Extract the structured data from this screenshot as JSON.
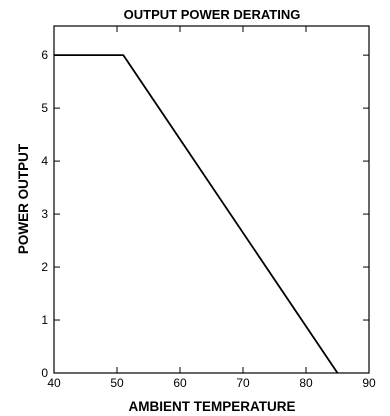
{
  "chart_data": {
    "type": "line",
    "title": "OUTPUT POWER DERATING",
    "xlabel": "AMBIENT TEMPERATURE",
    "ylabel": "POWER OUTPUT",
    "xlim": [
      40,
      90
    ],
    "ylim": [
      0,
      6.55
    ],
    "x_ticks": [
      "40",
      "50",
      "60",
      "70",
      "80",
      "90"
    ],
    "y_ticks": [
      "0",
      "1",
      "2",
      "3",
      "4",
      "5",
      "6"
    ],
    "grid": false,
    "series": [
      {
        "x": [
          40,
          51,
          85
        ],
        "y": [
          6,
          6,
          0
        ],
        "color": "#000000"
      }
    ]
  }
}
